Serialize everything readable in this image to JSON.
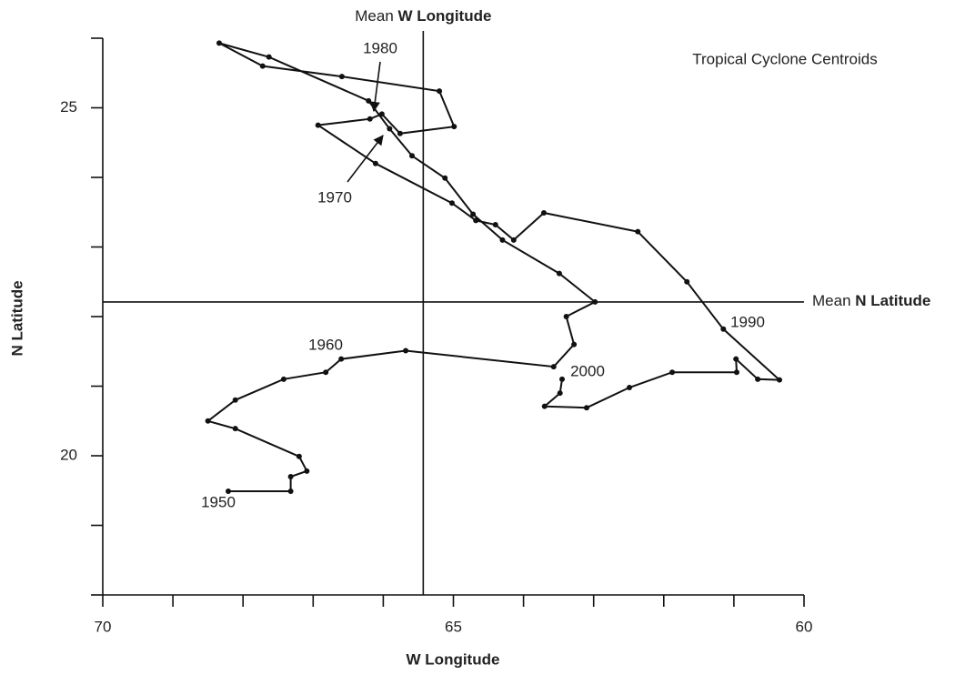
{
  "chart_data": {
    "type": "line",
    "title": "Tropical Cyclone Centroids",
    "xlabel": "W Longitude",
    "ylabel": "N Latitude",
    "xlim": [
      70,
      60
    ],
    "ylim": [
      18,
      26
    ],
    "xticks": [
      70,
      65,
      60
    ],
    "xminor_ticks": [
      69,
      68,
      67,
      66,
      64,
      63,
      62,
      61
    ],
    "yticks": [
      25,
      20
    ],
    "yminor_ticks": [
      26,
      24,
      23,
      22,
      21,
      19,
      18
    ],
    "color": "#111111",
    "mean_x": {
      "prefix": "Mean",
      "bold": "W Longitude",
      "value": 65.43
    },
    "mean_y": {
      "prefix": "Mean",
      "bold": "N Latitude",
      "value": 22.21
    },
    "annotations": [
      "1950",
      "1960",
      "1970",
      "1980",
      "1990",
      "2000"
    ],
    "x": [
      68.21,
      67.32,
      67.32,
      67.09,
      67.2,
      68.11,
      68.5,
      68.11,
      67.42,
      66.82,
      66.6,
      65.68,
      63.57,
      63.28,
      63.39,
      62.98,
      63.49,
      64.3,
      64.72,
      65.12,
      65.59,
      65.91,
      66.21,
      67.63,
      68.34,
      67.72,
      66.59,
      65.2,
      64.99,
      65.76,
      66.02,
      66.19,
      66.93,
      66.11,
      65.02,
      64.68,
      64.4,
      64.14,
      63.71,
      62.37,
      61.67,
      61.15,
      60.35,
      60.66,
      60.97,
      60.96,
      61.88,
      62.49,
      63.1,
      63.7,
      63.48,
      63.45
    ],
    "y": [
      19.49,
      19.49,
      19.7,
      19.78,
      19.99,
      20.39,
      20.5,
      20.8,
      21.1,
      21.2,
      21.39,
      21.51,
      21.28,
      21.6,
      22.0,
      22.21,
      22.62,
      23.1,
      23.47,
      23.99,
      24.31,
      24.7,
      25.1,
      25.73,
      25.93,
      25.6,
      25.45,
      25.24,
      24.73,
      24.63,
      24.91,
      24.84,
      24.75,
      24.2,
      23.63,
      23.38,
      23.32,
      23.1,
      23.49,
      23.22,
      22.5,
      21.82,
      21.09,
      21.1,
      21.39,
      21.2,
      21.2,
      20.98,
      20.69,
      20.71,
      20.9,
      21.1
    ]
  }
}
